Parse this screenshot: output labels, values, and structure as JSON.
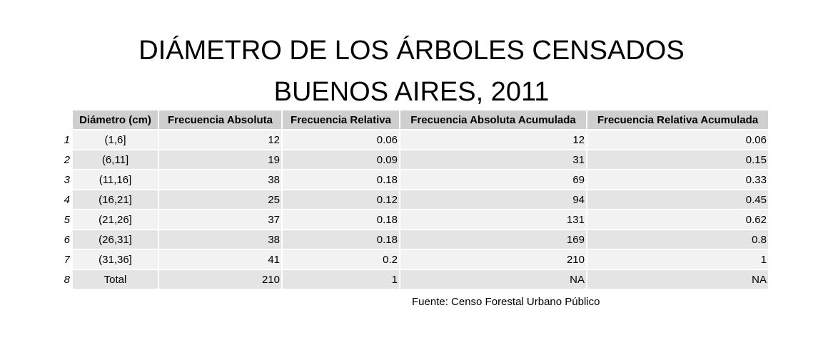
{
  "chart_data": {
    "type": "table",
    "title": "DIÁMETRO DE LOS ÁRBOLES CENSADOS",
    "subtitle": "BUENOS AIRES, 2011",
    "columns": [
      "Diámetro (cm)",
      "Frecuencia Absoluta",
      "Frecuencia Relativa",
      "Frecuencia Absoluta Acumulada",
      "Frecuencia Relativa Acumulada"
    ],
    "rows": [
      {
        "index": "1",
        "cells": [
          "(1,6]",
          "12",
          "0.06",
          "12",
          "0.06"
        ]
      },
      {
        "index": "2",
        "cells": [
          "(6,11]",
          "19",
          "0.09",
          "31",
          "0.15"
        ]
      },
      {
        "index": "3",
        "cells": [
          "(11,16]",
          "38",
          "0.18",
          "69",
          "0.33"
        ]
      },
      {
        "index": "4",
        "cells": [
          "(16,21]",
          "25",
          "0.12",
          "94",
          "0.45"
        ]
      },
      {
        "index": "5",
        "cells": [
          "(21,26]",
          "37",
          "0.18",
          "131",
          "0.62"
        ]
      },
      {
        "index": "6",
        "cells": [
          "(26,31]",
          "38",
          "0.18",
          "169",
          "0.8"
        ]
      },
      {
        "index": "7",
        "cells": [
          "(31,36]",
          "41",
          "0.2",
          "210",
          "1"
        ]
      },
      {
        "index": "8",
        "cells": [
          "Total",
          "210",
          "1",
          "NA",
          "NA"
        ]
      }
    ],
    "source": "Fuente: Censo Forestal Urbano Público"
  }
}
